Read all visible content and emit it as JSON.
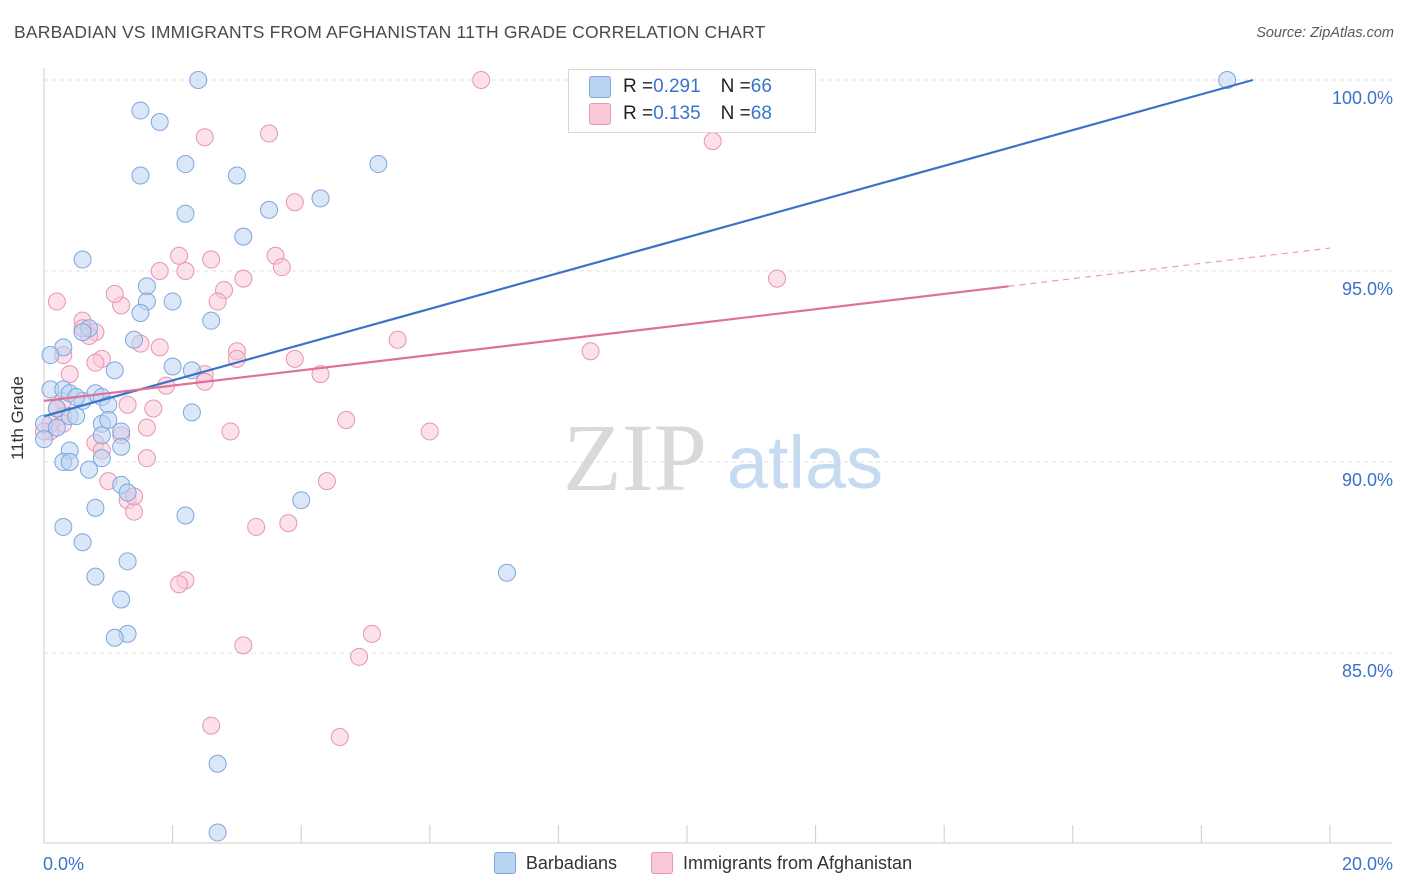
{
  "title": "BARBADIAN VS IMMIGRANTS FROM AFGHANISTAN 11TH GRADE CORRELATION CHART",
  "source": "Source: ZipAtlas.com",
  "watermark": {
    "zip": "ZIP",
    "atlas": "atlas"
  },
  "colors": {
    "blue": "#3b73c8",
    "blue_fill": "#b9d3f2",
    "pink": "#e0709a",
    "pink_fill": "#f9c9d8",
    "tick_label": "#3b73c8"
  },
  "stats_legend": [
    {
      "r_label": "R = ",
      "r_value": "0.291",
      "n_label": "N = ",
      "n_value": "66"
    },
    {
      "r_label": "R = ",
      "r_value": "0.135",
      "n_label": "N = ",
      "n_value": "68"
    }
  ],
  "chart_data": {
    "type": "scatter",
    "xlabel": "",
    "ylabel": "11th Grade",
    "xlim": [
      0,
      20
    ],
    "ylim": [
      80,
      100.5
    ],
    "x_tick_labels": [
      {
        "value": 0,
        "label": "0.0%"
      },
      {
        "value": 20,
        "label": "20.0%"
      }
    ],
    "y_tick_labels": [
      {
        "value": 85,
        "label": "85.0%"
      },
      {
        "value": 90,
        "label": "90.0%"
      },
      {
        "value": 95,
        "label": "95.0%"
      },
      {
        "value": 100,
        "label": "100.0%"
      }
    ],
    "series": [
      {
        "name": "Barbadians",
        "color": "#3b73c8",
        "trend": {
          "x0": 0,
          "y0": 91.2,
          "x1": 18.8,
          "y1": 100.0,
          "solid_to": 18.8
        },
        "points": [
          [
            2.4,
            100
          ],
          [
            18.4,
            100
          ],
          [
            1.5,
            99.2
          ],
          [
            1.8,
            98.9
          ],
          [
            5.2,
            97.8
          ],
          [
            2.2,
            97.8
          ],
          [
            1.5,
            97.5
          ],
          [
            3.0,
            97.5
          ],
          [
            2.2,
            96.5
          ],
          [
            3.5,
            96.6
          ],
          [
            4.3,
            96.9
          ],
          [
            3.1,
            95.9
          ],
          [
            0.6,
            95.3
          ],
          [
            1.6,
            94.6
          ],
          [
            1.6,
            94.2
          ],
          [
            2.0,
            94.2
          ],
          [
            1.5,
            93.9
          ],
          [
            2.6,
            93.7
          ],
          [
            0.7,
            93.5
          ],
          [
            0.6,
            93.4
          ],
          [
            1.4,
            93.2
          ],
          [
            0.3,
            93.0
          ],
          [
            0.1,
            92.8
          ],
          [
            1.1,
            92.4
          ],
          [
            2.3,
            92.4
          ],
          [
            2.0,
            92.5
          ],
          [
            0.1,
            91.9
          ],
          [
            0.3,
            91.9
          ],
          [
            0.4,
            91.8
          ],
          [
            0.8,
            91.8
          ],
          [
            0.9,
            91.7
          ],
          [
            0.6,
            91.6
          ],
          [
            1.0,
            91.5
          ],
          [
            0.2,
            91.4
          ],
          [
            0.4,
            91.2
          ],
          [
            0.5,
            91.2
          ],
          [
            2.3,
            91.3
          ],
          [
            0.0,
            91.0
          ],
          [
            0.9,
            91.0
          ],
          [
            1.2,
            90.8
          ],
          [
            0.9,
            90.7
          ],
          [
            0.0,
            90.6
          ],
          [
            1.2,
            90.4
          ],
          [
            0.4,
            90.3
          ],
          [
            0.9,
            90.1
          ],
          [
            0.3,
            90.0
          ],
          [
            0.4,
            90.0
          ],
          [
            0.7,
            89.8
          ],
          [
            1.2,
            89.4
          ],
          [
            1.3,
            89.2
          ],
          [
            4.0,
            89.0
          ],
          [
            0.8,
            88.8
          ],
          [
            2.2,
            88.6
          ],
          [
            0.3,
            88.3
          ],
          [
            0.6,
            87.9
          ],
          [
            1.3,
            87.4
          ],
          [
            7.2,
            87.1
          ],
          [
            0.8,
            87.0
          ],
          [
            1.2,
            86.4
          ],
          [
            1.3,
            85.5
          ],
          [
            1.1,
            85.4
          ],
          [
            2.7,
            82.1
          ],
          [
            2.7,
            80.3
          ],
          [
            0.5,
            91.7
          ],
          [
            0.2,
            90.9
          ],
          [
            1.0,
            91.1
          ]
        ]
      },
      {
        "name": "Immigrants from Afghanistan",
        "color": "#e0709a",
        "trend": {
          "x0": 0,
          "y0": 91.6,
          "x1": 20,
          "y1": 95.6,
          "solid_to": 15.0
        },
        "points": [
          [
            6.8,
            100
          ],
          [
            2.5,
            98.5
          ],
          [
            3.5,
            98.6
          ],
          [
            10.4,
            98.4
          ],
          [
            3.9,
            96.8
          ],
          [
            2.1,
            95.4
          ],
          [
            3.6,
            95.4
          ],
          [
            2.6,
            95.3
          ],
          [
            1.8,
            95.0
          ],
          [
            2.2,
            95.0
          ],
          [
            3.7,
            95.1
          ],
          [
            3.1,
            94.8
          ],
          [
            11.4,
            94.8
          ],
          [
            2.8,
            94.5
          ],
          [
            0.2,
            94.2
          ],
          [
            2.7,
            94.2
          ],
          [
            1.2,
            94.1
          ],
          [
            1.1,
            94.4
          ],
          [
            0.6,
            93.7
          ],
          [
            0.8,
            93.4
          ],
          [
            0.7,
            93.3
          ],
          [
            0.6,
            93.5
          ],
          [
            5.5,
            93.2
          ],
          [
            1.5,
            93.1
          ],
          [
            1.8,
            93.0
          ],
          [
            3.0,
            92.9
          ],
          [
            8.5,
            92.9
          ],
          [
            0.3,
            92.8
          ],
          [
            0.9,
            92.7
          ],
          [
            0.8,
            92.6
          ],
          [
            3.0,
            92.7
          ],
          [
            3.9,
            92.7
          ],
          [
            0.4,
            92.3
          ],
          [
            2.5,
            92.3
          ],
          [
            2.5,
            92.1
          ],
          [
            4.3,
            92.3
          ],
          [
            1.9,
            92.0
          ],
          [
            0.3,
            91.6
          ],
          [
            1.3,
            91.5
          ],
          [
            1.7,
            91.4
          ],
          [
            0.2,
            91.4
          ],
          [
            0.3,
            91.2
          ],
          [
            4.7,
            91.1
          ],
          [
            0.3,
            91.0
          ],
          [
            2.9,
            90.8
          ],
          [
            6.0,
            90.8
          ],
          [
            1.6,
            90.9
          ],
          [
            0.1,
            90.8
          ],
          [
            1.2,
            90.7
          ],
          [
            0.8,
            90.5
          ],
          [
            0.9,
            90.3
          ],
          [
            1.6,
            90.1
          ],
          [
            1.0,
            89.5
          ],
          [
            4.4,
            89.5
          ],
          [
            1.3,
            89.0
          ],
          [
            1.4,
            88.7
          ],
          [
            3.8,
            88.4
          ],
          [
            3.3,
            88.3
          ],
          [
            2.2,
            86.9
          ],
          [
            2.1,
            86.8
          ],
          [
            5.1,
            85.5
          ],
          [
            3.1,
            85.2
          ],
          [
            4.9,
            84.9
          ],
          [
            2.6,
            83.1
          ],
          [
            4.6,
            82.8
          ],
          [
            0.1,
            91.0
          ],
          [
            0.0,
            90.8
          ],
          [
            1.4,
            89.1
          ]
        ]
      }
    ]
  }
}
